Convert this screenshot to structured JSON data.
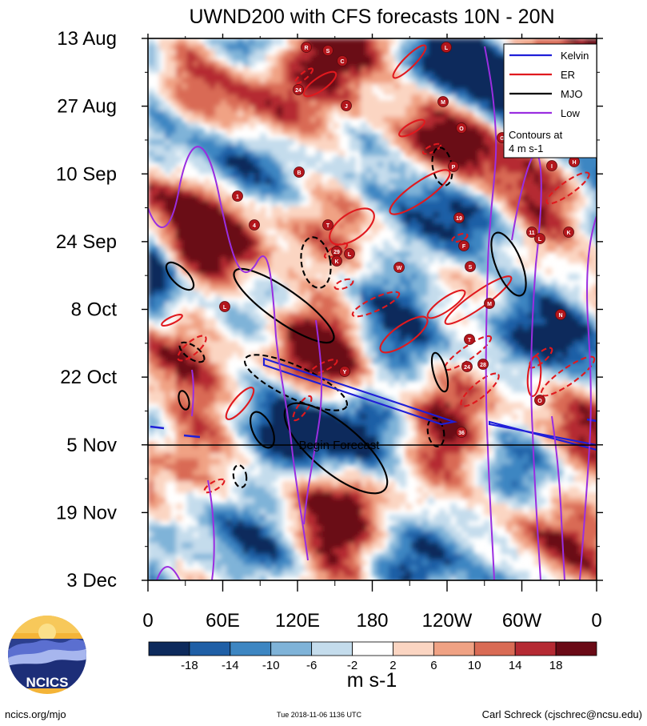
{
  "chart_data": {
    "type": "heatmap",
    "title": "UWND200 with CFS forecasts  10N - 20N",
    "y_axis": {
      "ticks": [
        "13 Aug",
        "27 Aug",
        "10 Sep",
        "24 Sep",
        "8 Oct",
        "22 Oct",
        "5 Nov",
        "19 Nov",
        "3 Dec"
      ],
      "day_offsets": [
        0,
        14,
        28,
        42,
        56,
        70,
        84,
        98,
        112
      ]
    },
    "x_axis": {
      "ticks": [
        "0",
        "60E",
        "120E",
        "180",
        "120W",
        "60W",
        "0"
      ],
      "longitudes": [
        0,
        60,
        120,
        180,
        240,
        300,
        360
      ],
      "range": [
        0,
        360
      ]
    },
    "forecast_line": {
      "day": 84,
      "label": "Begin Forecast"
    },
    "colorbar": {
      "labels": [
        "-18",
        "-14",
        "-10",
        "-6",
        "-2",
        "2",
        "6",
        "10",
        "14",
        "18"
      ],
      "values": [
        -18,
        -14,
        -10,
        -6,
        -2,
        2,
        6,
        10,
        14,
        18
      ],
      "colors": [
        "#0d2a5c",
        "#1f5fa6",
        "#3d86c2",
        "#7fb3d8",
        "#c4dcec",
        "#ffffff",
        "#fbd5c2",
        "#f0a284",
        "#d96b55",
        "#b52a33",
        "#6a0a16"
      ],
      "units": "m s-1"
    },
    "legend": [
      {
        "name": "Kelvin",
        "color": "#1f1fd8"
      },
      {
        "name": "ER",
        "color": "#e0191e"
      },
      {
        "name": "MJO",
        "color": "#000000"
      },
      {
        "name": "Low",
        "color": "#9a2ee0"
      }
    ],
    "contour_note": "Contours at\n4 m s-1",
    "tc_markers": [
      "R",
      "S",
      "C",
      "L",
      "24",
      "J",
      "M",
      "O",
      "G",
      "P",
      "B",
      "1",
      "4",
      "T",
      "29",
      "L",
      "K",
      "19",
      "W",
      "11",
      "L",
      "K",
      "I",
      "H",
      "F",
      "S",
      "M",
      "N",
      "T",
      "L",
      "Y",
      "24",
      "28",
      "O",
      "36"
    ]
  },
  "footer": {
    "left": "ncics.org/mjo",
    "center": "Tue 2018-11-06 1136 UTC",
    "right": "Carl Schreck (cjschrec@ncsu.edu)",
    "logo_text": "NCICS"
  }
}
